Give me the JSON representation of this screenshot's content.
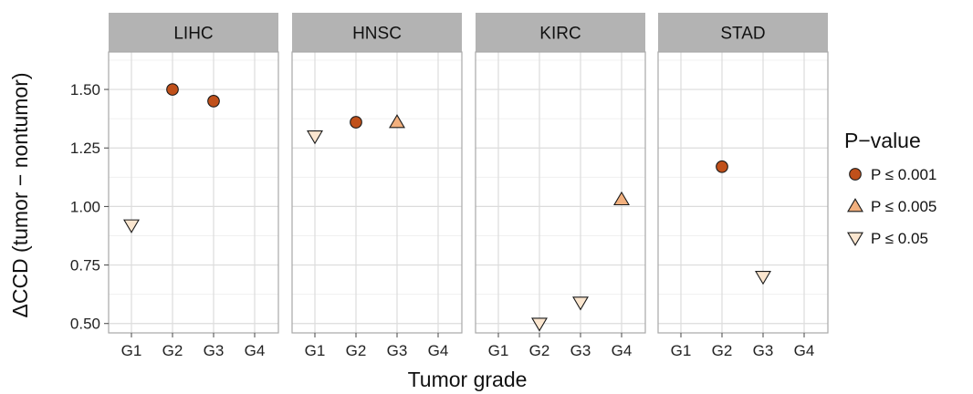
{
  "chart_data": {
    "type": "scatter",
    "facet_label": "panel",
    "panels": [
      "LIHC",
      "HNSC",
      "KIRC",
      "STAD"
    ],
    "categories": [
      "G1",
      "G2",
      "G3",
      "G4"
    ],
    "ylim": [
      0.46,
      1.66
    ],
    "y_ticks": [
      "0.50",
      "0.75",
      "1.00",
      "1.25",
      "1.50"
    ],
    "xlabel": "Tumor grade",
    "ylabel": "ΔCCD (tumor − nontumor)",
    "grid": true,
    "legend": {
      "title": "P−value",
      "position": "right",
      "items": [
        {
          "label": "P ≤ 0.001",
          "shape": "circle",
          "color": "#c0501a"
        },
        {
          "label": "P ≤ 0.005",
          "shape": "triangle-up",
          "color": "#f2b07e"
        },
        {
          "label": "P ≤ 0.05",
          "shape": "triangle-down",
          "color": "#fbe6cf"
        }
      ]
    },
    "points": [
      {
        "panel": "LIHC",
        "x": "G1",
        "y": 0.92,
        "p": "P ≤ 0.05"
      },
      {
        "panel": "LIHC",
        "x": "G2",
        "y": 1.5,
        "p": "P ≤ 0.001"
      },
      {
        "panel": "LIHC",
        "x": "G3",
        "y": 1.45,
        "p": "P ≤ 0.001"
      },
      {
        "panel": "HNSC",
        "x": "G1",
        "y": 1.3,
        "p": "P ≤ 0.05"
      },
      {
        "panel": "HNSC",
        "x": "G2",
        "y": 1.36,
        "p": "P ≤ 0.001"
      },
      {
        "panel": "HNSC",
        "x": "G3",
        "y": 1.36,
        "p": "P ≤ 0.005"
      },
      {
        "panel": "KIRC",
        "x": "G2",
        "y": 0.5,
        "p": "P ≤ 0.05"
      },
      {
        "panel": "KIRC",
        "x": "G3",
        "y": 0.59,
        "p": "P ≤ 0.05"
      },
      {
        "panel": "KIRC",
        "x": "G4",
        "y": 1.03,
        "p": "P ≤ 0.005"
      },
      {
        "panel": "STAD",
        "x": "G2",
        "y": 1.17,
        "p": "P ≤ 0.001"
      },
      {
        "panel": "STAD",
        "x": "G3",
        "y": 0.7,
        "p": "P ≤ 0.05"
      }
    ]
  }
}
